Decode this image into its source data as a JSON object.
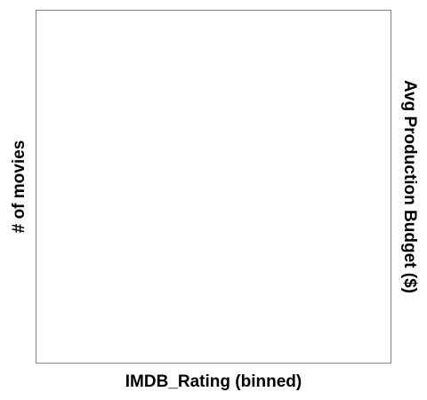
{
  "chart_data": {
    "type": "bar",
    "title": "",
    "xlabel": "IMDB_Rating (binned)",
    "ylabel": "# of movies",
    "ylabel_right": "Avg Production Budget ($)",
    "categories": [],
    "series": [],
    "grid": false,
    "legend": "none",
    "colors": {
      "background": "#ffffff",
      "plot_border": "#808080",
      "text": "#000000"
    }
  }
}
